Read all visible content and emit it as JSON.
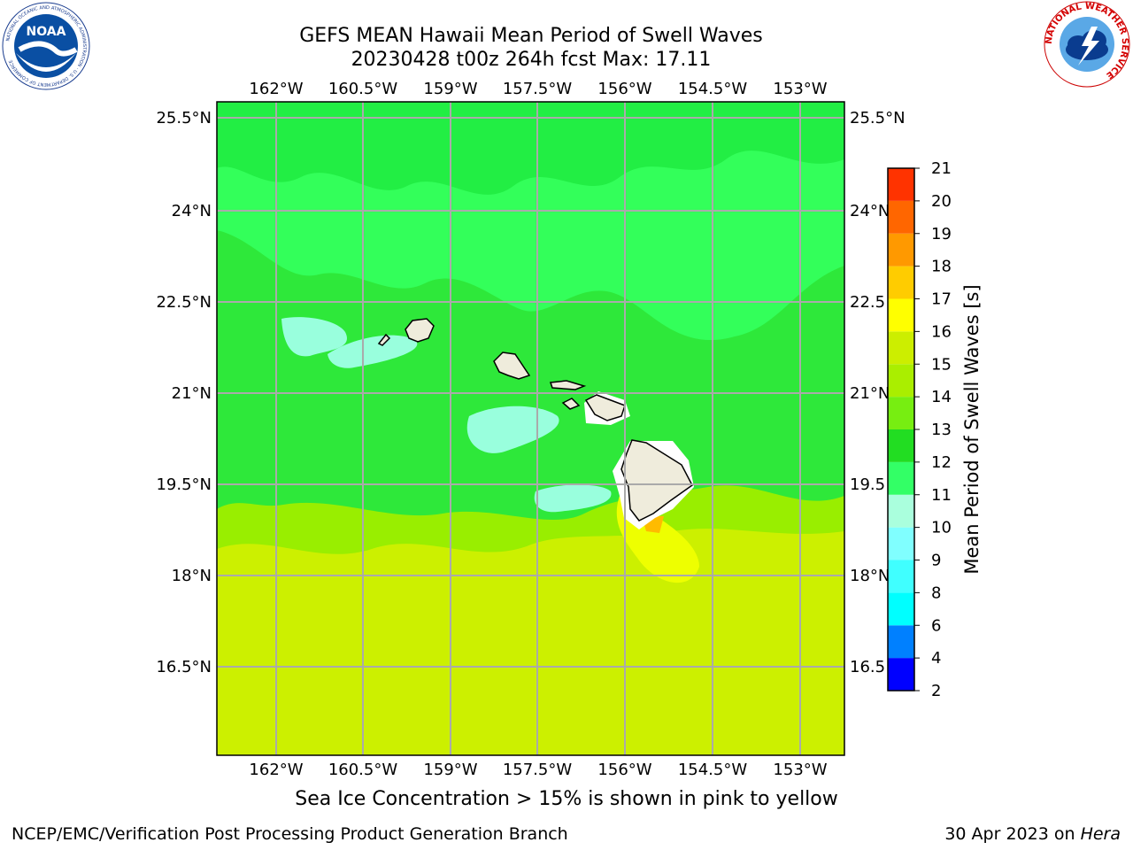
{
  "title_line1": "GEFS MEAN Hawaii Mean Period of Swell Waves",
  "title_line2": "20230428 t00z 264h fcst   Max: 17.11",
  "lon_labels": [
    "162°W",
    "160.5°W",
    "159°W",
    "157.5°W",
    "156°W",
    "154.5°W",
    "153°W"
  ],
  "lat_labels": [
    "25.5°N",
    "24°N",
    "22.5°N",
    "21°N",
    "19.5°N",
    "18°N",
    "16.5°N"
  ],
  "lat_labels_right": [
    "25.5°N",
    "24°N",
    "22.5",
    "21°N",
    "19.5",
    "18°N",
    "16.5"
  ],
  "colorbar": {
    "label": "Mean Period of Swell Waves [s]",
    "ticks": [
      "2",
      "4",
      "6",
      "8",
      "9",
      "10",
      "11",
      "12",
      "13",
      "14",
      "15",
      "16",
      "17",
      "18",
      "19",
      "20",
      "21"
    ],
    "colors": [
      "#0000ff",
      "#0080ff",
      "#00ffff",
      "#40ffff",
      "#80ffff",
      "#aaffdd",
      "#33ff66",
      "#22dd22",
      "#77ee11",
      "#aaee00",
      "#ccee00",
      "#ffff00",
      "#ffcc00",
      "#ff9900",
      "#ff6600",
      "#ff3300",
      "#ff0000"
    ]
  },
  "subtitle": "Sea Ice Concentration > 15% is shown in pink to yellow",
  "footer_left": "NCEP/EMC/Verification Post Processing Product Generation Branch",
  "footer_right_date": "30 Apr 2023 on ",
  "footer_right_host": "Hera",
  "logos": {
    "noaa_text": "NOAA",
    "noaa_ring": "NATIONAL OCEANIC AND ATMOSPHERIC ADMINISTRATION · U.S. DEPARTMENT OF COMMERCE",
    "nws_ring": "NATIONAL WEATHER SERVICE"
  }
}
